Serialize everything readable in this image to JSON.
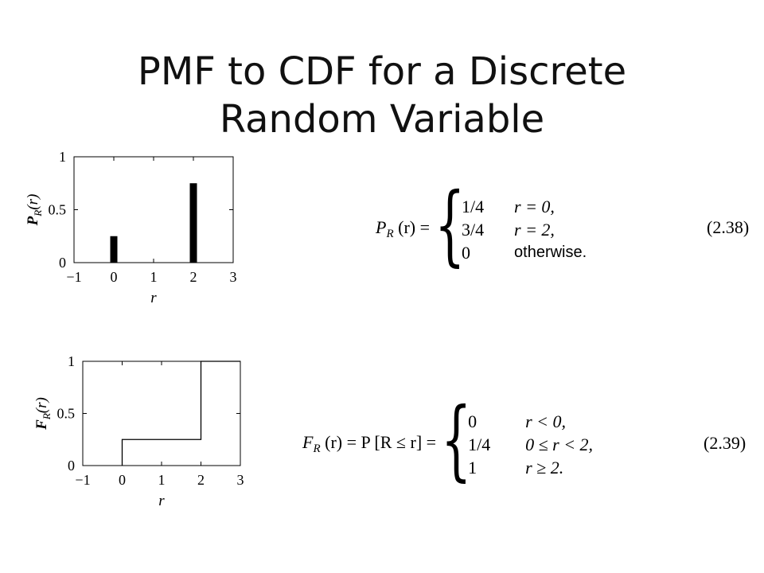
{
  "slide": {
    "title_line1": "PMF to CDF for a Discrete",
    "title_line2": "Random Variable"
  },
  "chart_data": [
    {
      "type": "bar",
      "ylabel_main": "P",
      "ylabel_sub": "R",
      "ylabel_arg": "(r)",
      "xlabel": "r",
      "xlim": [
        -1,
        3
      ],
      "ylim": [
        0,
        1
      ],
      "xticks": [
        "−1",
        "0",
        "1",
        "2",
        "3"
      ],
      "xtick_values": [
        -1,
        0,
        1,
        2,
        3
      ],
      "yticks": [
        "0",
        "0.5",
        "1"
      ],
      "ytick_values": [
        0,
        0.5,
        1
      ],
      "x": [
        0,
        2
      ],
      "values": [
        0.25,
        0.75
      ]
    },
    {
      "type": "line",
      "step": true,
      "ylabel_main": "F",
      "ylabel_sub": "R",
      "ylabel_arg": "(r)",
      "xlabel": "r",
      "xlim": [
        -1,
        3
      ],
      "ylim": [
        0,
        1
      ],
      "xticks": [
        "−1",
        "0",
        "1",
        "2",
        "3"
      ],
      "xtick_values": [
        -1,
        0,
        1,
        2,
        3
      ],
      "yticks": [
        "0",
        "0.5",
        "1"
      ],
      "ytick_values": [
        0,
        0.5,
        1
      ],
      "x": [
        0,
        0,
        2,
        2,
        3
      ],
      "y": [
        0,
        0.25,
        0.25,
        1,
        1
      ]
    }
  ],
  "equations": {
    "pmf": {
      "lhs_main": "P",
      "lhs_sub": "R",
      "lhs_arg": " (r) =",
      "cases": [
        {
          "value": "1/4",
          "cond": "r = 0,"
        },
        {
          "value": "3/4",
          "cond": "r = 2,"
        },
        {
          "value": "0",
          "cond": "otherwise."
        }
      ],
      "number": "(2.38)"
    },
    "cdf": {
      "lhs_main": "F",
      "lhs_sub": "R",
      "lhs_arg": " (r) = P [R ≤ r] =",
      "cases": [
        {
          "value": "0",
          "cond": "r < 0,"
        },
        {
          "value": "1/4",
          "cond": "0 ≤ r < 2,"
        },
        {
          "value": "1",
          "cond": "r ≥ 2."
        }
      ],
      "number": "(2.39)"
    }
  }
}
